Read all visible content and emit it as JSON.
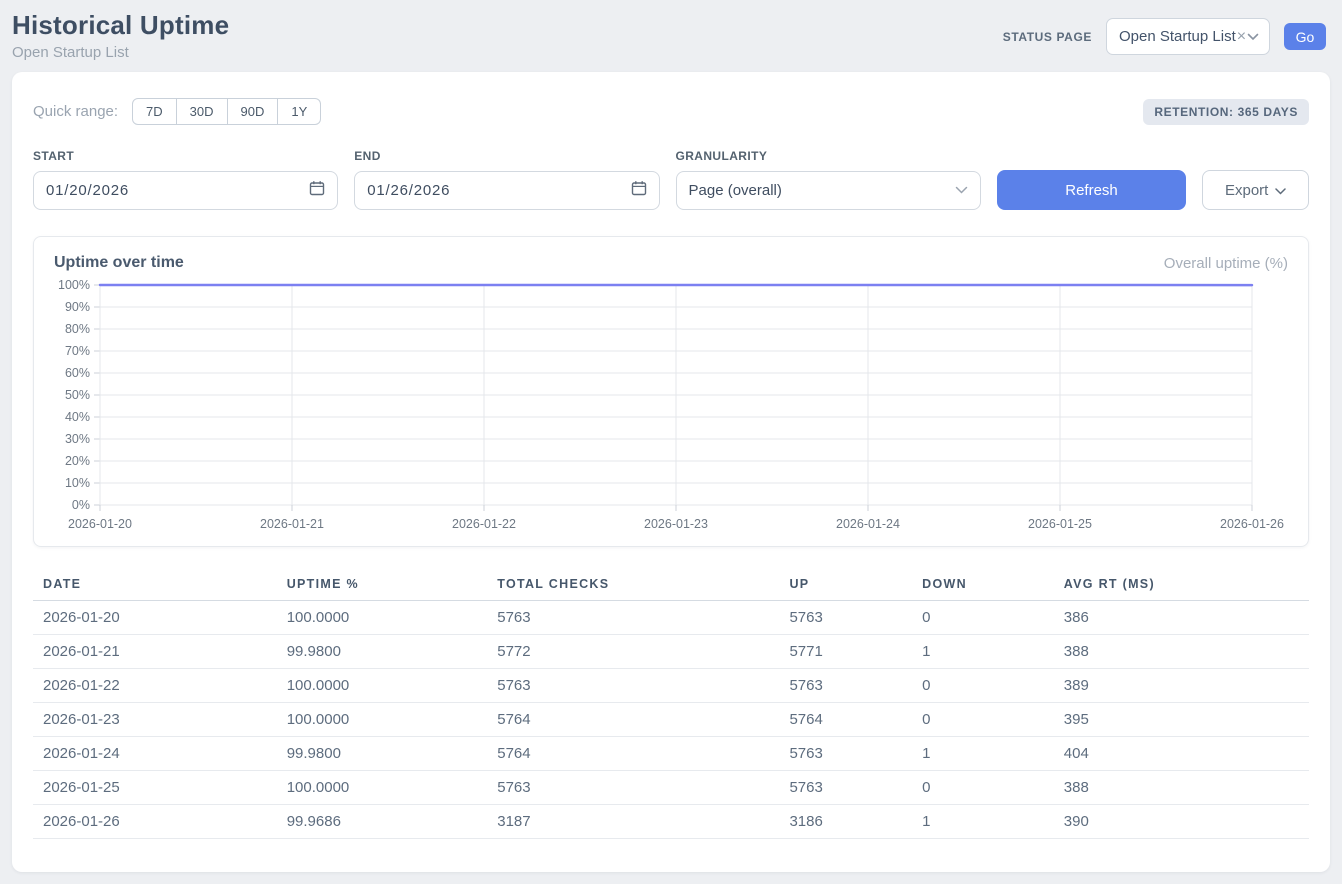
{
  "header": {
    "title": "Historical Uptime",
    "subtitle": "Open Startup List",
    "status_page_label": "STATUS PAGE",
    "status_page_value": "Open Startup List",
    "clear_icon": "×",
    "go_label": "Go"
  },
  "filters": {
    "quick_range_label": "Quick range:",
    "quick_ranges": [
      "7D",
      "30D",
      "90D",
      "1Y"
    ],
    "retention_badge": "RETENTION: 365 DAYS",
    "start_label": "START",
    "start_value": "01/20/2026",
    "end_label": "END",
    "end_value": "01/26/2026",
    "granularity_label": "GRANULARITY",
    "granularity_value": "Page (overall)",
    "refresh_label": "Refresh",
    "export_label": "Export"
  },
  "chart": {
    "title": "Uptime over time",
    "legend": "Overall uptime (%)"
  },
  "chart_data": {
    "type": "line",
    "title": "Uptime over time",
    "x": [
      "2026-01-20",
      "2026-01-21",
      "2026-01-22",
      "2026-01-23",
      "2026-01-24",
      "2026-01-25",
      "2026-01-26"
    ],
    "series": [
      {
        "name": "Overall uptime (%)",
        "values": [
          100.0,
          99.98,
          100.0,
          100.0,
          99.98,
          100.0,
          99.9686
        ]
      }
    ],
    "ylim": [
      0,
      100
    ],
    "y_tick_step": 10,
    "y_tick_suffix": "%",
    "grid": true,
    "legend_position": "top-right"
  },
  "table": {
    "columns": [
      "DATE",
      "UPTIME %",
      "TOTAL CHECKS",
      "UP",
      "DOWN",
      "AVG RT (MS)"
    ],
    "rows": [
      [
        "2026-01-20",
        "100.0000",
        "5763",
        "5763",
        "0",
        "386"
      ],
      [
        "2026-01-21",
        "99.9800",
        "5772",
        "5771",
        "1",
        "388"
      ],
      [
        "2026-01-22",
        "100.0000",
        "5763",
        "5763",
        "0",
        "389"
      ],
      [
        "2026-01-23",
        "100.0000",
        "5764",
        "5764",
        "0",
        "395"
      ],
      [
        "2026-01-24",
        "99.9800",
        "5764",
        "5763",
        "1",
        "404"
      ],
      [
        "2026-01-25",
        "100.0000",
        "5763",
        "5763",
        "0",
        "388"
      ],
      [
        "2026-01-26",
        "99.9686",
        "3187",
        "3186",
        "1",
        "390"
      ]
    ]
  },
  "colors": {
    "accent_blue": "#5b81e9",
    "line_indigo": "#7c80f1",
    "gridline": "#e4e7eb",
    "tick": "#ccd1d8",
    "axis_label": "#6e7884"
  }
}
